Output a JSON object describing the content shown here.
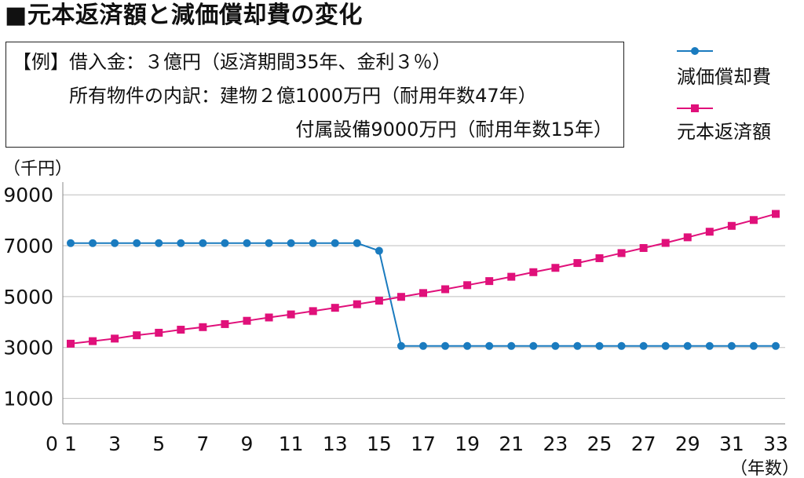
{
  "title": "■元本返済額と減価償却費の変化",
  "note": {
    "prefix": "【例】",
    "line1": "借入金：３億円（返済期間35年、金利３％）",
    "line2": "所有物件の内訳：建物２億1000万円（耐用年数47年）",
    "line3": "付属設備9000万円（耐用年数15年）"
  },
  "colors": {
    "depreciation": "#1a7bbf",
    "principal": "#e0107a",
    "grid": "#bdbdbd"
  },
  "chart_data": {
    "type": "line",
    "ylabel": "（千円）",
    "xlabel": "（年数）",
    "ylim": [
      0,
      9500
    ],
    "xlim": [
      0,
      33
    ],
    "y_ticks": [
      1000,
      3000,
      5000,
      7000,
      9000
    ],
    "x_ticks": [
      1,
      3,
      5,
      7,
      9,
      11,
      13,
      15,
      17,
      19,
      21,
      23,
      25,
      27,
      29,
      31,
      33
    ],
    "origin_label": "0",
    "grid": "horizontal",
    "legend_position": "top-right",
    "x": [
      1,
      2,
      3,
      4,
      5,
      6,
      7,
      8,
      9,
      10,
      11,
      12,
      13,
      14,
      15,
      16,
      17,
      18,
      19,
      20,
      21,
      22,
      23,
      24,
      25,
      26,
      27,
      28,
      29,
      30,
      31,
      32,
      33
    ],
    "series": [
      {
        "name": "減価償却費",
        "marker": "circle",
        "values": [
          7100,
          7100,
          7100,
          7100,
          7100,
          7100,
          7100,
          7100,
          7100,
          7100,
          7100,
          7100,
          7100,
          7100,
          6800,
          3060,
          3060,
          3060,
          3060,
          3060,
          3060,
          3060,
          3060,
          3060,
          3060,
          3060,
          3060,
          3060,
          3060,
          3060,
          3060,
          3060,
          3060
        ]
      },
      {
        "name": "元本返済額",
        "marker": "square",
        "values": [
          3150,
          3250,
          3350,
          3480,
          3580,
          3700,
          3800,
          3920,
          4050,
          4180,
          4300,
          4430,
          4560,
          4700,
          4840,
          4990,
          5140,
          5290,
          5450,
          5610,
          5780,
          5960,
          6130,
          6320,
          6510,
          6710,
          6910,
          7110,
          7330,
          7550,
          7780,
          8010,
          8250
        ]
      }
    ]
  }
}
